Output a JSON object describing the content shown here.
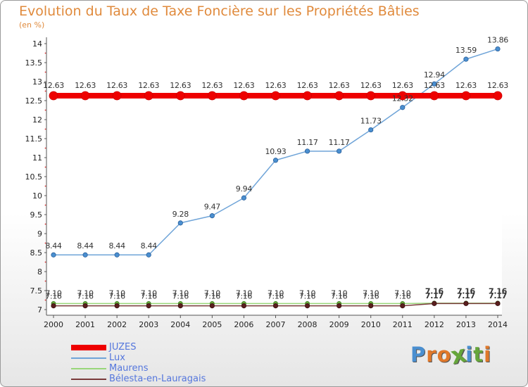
{
  "title": "Evolution du Taux de Taxe Foncière sur les Propriétés Bâties",
  "ylabel_unit": "(en %)",
  "logo": {
    "letters": [
      "P",
      "r",
      "o",
      "x",
      "i",
      "t",
      "i"
    ],
    "colors": [
      "#4a8fd0",
      "#e0782a",
      "#e0782a",
      "#66a63b",
      "#4a8fd0",
      "#66a63b",
      "#e0782a"
    ]
  },
  "chart_data": {
    "type": "line",
    "title": "Evolution du Taux de Taxe Foncière sur les Propriétés Bâties",
    "ylabel": "(en %)",
    "xlabel": "",
    "ylim": [
      7,
      14
    ],
    "yticks": [
      7,
      7.5,
      8,
      8.5,
      9,
      9.5,
      10,
      10.5,
      11,
      11.5,
      12,
      12.5,
      13,
      13.5,
      14
    ],
    "x": [
      "2000",
      "2001",
      "2002",
      "2003",
      "2004",
      "2005",
      "2006",
      "2007",
      "2008",
      "2009",
      "2010",
      "2011",
      "2012",
      "2013",
      "2014"
    ],
    "series": [
      {
        "name": "JUZES",
        "color": "#ee0000",
        "values": [
          12.63,
          12.63,
          12.63,
          12.63,
          12.63,
          12.63,
          12.63,
          12.63,
          12.63,
          12.63,
          12.63,
          12.63,
          12.63,
          12.63,
          12.63
        ],
        "labels": [
          "12.63",
          "12.63",
          "12.63",
          "12.63",
          "12.63",
          "12.63",
          "12.63",
          "12.63",
          "12.63",
          "12.63",
          "12.63",
          "12.63",
          "12.63",
          "12.63",
          "12.63"
        ]
      },
      {
        "name": "Lux",
        "color": "#6fa4d8",
        "values": [
          8.44,
          8.44,
          8.44,
          8.44,
          9.28,
          9.47,
          9.94,
          10.93,
          11.17,
          11.17,
          11.73,
          12.32,
          12.94,
          13.59,
          13.86
        ],
        "labels": [
          "8.44",
          "8.44",
          "8.44",
          "8.44",
          "9.28",
          "9.47",
          "9.94",
          "10.93",
          "11.17",
          "11.17",
          "11.73",
          "12.32",
          "12.94",
          "13.59",
          "13.86"
        ]
      },
      {
        "name": "Maurens",
        "color": "#99d67a",
        "values": [
          7.16,
          7.16,
          7.16,
          7.16,
          7.16,
          7.16,
          7.16,
          7.16,
          7.16,
          7.16,
          7.16,
          7.16,
          7.17,
          7.17,
          7.17
        ],
        "labels": [
          "7.16",
          "7.16",
          "7.16",
          "7.16",
          "7.16",
          "7.16",
          "7.16",
          "7.16",
          "7.16",
          "7.16",
          "7.16",
          "7.16",
          "7.17",
          "7.17",
          "7.17"
        ]
      },
      {
        "name": "Belesta-en-Lauragais",
        "color": "#7a3a3a",
        "values": [
          7.1,
          7.1,
          7.1,
          7.1,
          7.1,
          7.1,
          7.1,
          7.1,
          7.1,
          7.1,
          7.1,
          7.1,
          7.16,
          7.16,
          7.16
        ],
        "labels": [
          "7.10",
          "7.10",
          "7.10",
          "7.10",
          "7.10",
          "7.10",
          "7.10",
          "7.10",
          "7.10",
          "7.10",
          "7.10",
          "7.10",
          "7.16",
          "7.16",
          "7.16"
        ]
      }
    ],
    "legend": [
      {
        "name": "JUZES",
        "color": "#ee0000",
        "text_color": "#5577dd"
      },
      {
        "name": "Lux",
        "color": "#6fa4d8",
        "text_color": "#5577dd"
      },
      {
        "name": "Maurens",
        "color": "#99d67a",
        "text_color": "#5577dd"
      },
      {
        "name": "Bélesta-en-Lauragais",
        "color": "#7a3a3a",
        "text_color": "#5577dd"
      }
    ]
  }
}
